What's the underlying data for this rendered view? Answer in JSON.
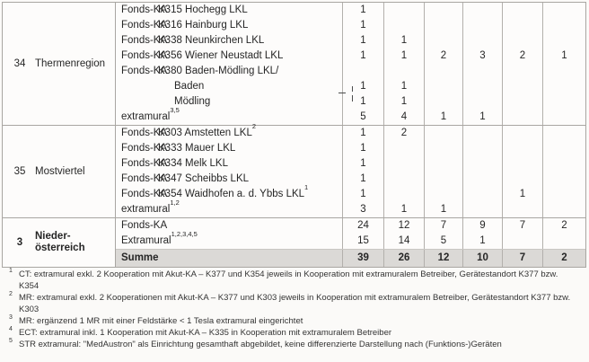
{
  "colors": {
    "table_border": "#a9a6a2",
    "grid_line": "#b3b0ac",
    "total_row_bg": "#dbd9d6",
    "text": "#262626",
    "page_bg": "#fbfaf8"
  },
  "sections": [
    {
      "code": "34",
      "region_line1": "Thermenregion",
      "region_line2": "",
      "rows": [
        {
          "type": "Fonds-KA",
          "name": "K315 Hochegg LKL",
          "sup": "",
          "indent": 1,
          "total": false,
          "values": [
            "1",
            "",
            "",
            "",
            "",
            ""
          ]
        },
        {
          "type": "Fonds-KA",
          "name": "K316 Hainburg LKL",
          "sup": "",
          "indent": 1,
          "total": false,
          "values": [
            "1",
            "",
            "",
            "",
            "",
            ""
          ]
        },
        {
          "type": "Fonds-KA",
          "name": "K338 Neunkirchen LKL",
          "sup": "",
          "indent": 1,
          "total": false,
          "values": [
            "1",
            "1",
            "",
            "",
            "",
            ""
          ]
        },
        {
          "type": "Fonds-KA",
          "name": "K356 Wiener Neustadt LKL",
          "sup": "",
          "indent": 1,
          "total": false,
          "values": [
            "1",
            "1",
            "2",
            "3",
            "2",
            "1"
          ]
        },
        {
          "type": "Fonds-KA",
          "name": "K380 Baden-Mödling LKL/",
          "sup": "",
          "indent": 1,
          "total": false,
          "values": [
            "",
            "",
            "",
            "",
            "",
            ""
          ]
        },
        {
          "type": "",
          "name": "Baden",
          "sup": "",
          "indent": 2,
          "total": false,
          "values": [
            "1",
            "1",
            "",
            "",
            "",
            ""
          ]
        },
        {
          "type": "",
          "name": "Mödling",
          "sup": "",
          "indent": 2,
          "total": false,
          "values": [
            "1",
            "1",
            "",
            "",
            "",
            ""
          ]
        },
        {
          "type": "",
          "name": "extramural",
          "sup": "3,5",
          "indent": 0,
          "total": false,
          "values": [
            "5",
            "4",
            "1",
            "1",
            "",
            ""
          ]
        }
      ]
    },
    {
      "code": "35",
      "region_line1": "Mostviertel",
      "region_line2": "",
      "rows": [
        {
          "type": "Fonds-KA",
          "name": "K303 Amstetten LKL",
          "sup": "2",
          "indent": 1,
          "total": false,
          "values": [
            "1",
            "2",
            "",
            "",
            "",
            ""
          ]
        },
        {
          "type": "Fonds-KA",
          "name": "K333 Mauer LKL",
          "sup": "",
          "indent": 1,
          "total": false,
          "values": [
            "1",
            "",
            "",
            "",
            "",
            ""
          ]
        },
        {
          "type": "Fonds-KA",
          "name": "K334 Melk LKL",
          "sup": "",
          "indent": 1,
          "total": false,
          "values": [
            "1",
            "",
            "",
            "",
            "",
            ""
          ]
        },
        {
          "type": "Fonds-KA",
          "name": "K347 Scheibbs LKL",
          "sup": "",
          "indent": 1,
          "total": false,
          "values": [
            "1",
            "",
            "",
            "",
            "",
            ""
          ]
        },
        {
          "type": "Fonds-KA",
          "name": "K354 Waidhofen a. d. Ybbs LKL",
          "sup": "1",
          "indent": 1,
          "total": false,
          "values": [
            "1",
            "",
            "",
            "",
            "1",
            ""
          ]
        },
        {
          "type": "",
          "name": "extramural",
          "sup": "1,2",
          "indent": 0,
          "total": false,
          "values": [
            "3",
            "1",
            "1",
            "",
            "",
            ""
          ]
        }
      ]
    },
    {
      "code": "3",
      "region_line1": "Nieder-",
      "region_line2": "österreich",
      "rows": [
        {
          "type": "",
          "name": "Fonds-KA",
          "sup": "",
          "indent": 0,
          "total": false,
          "values": [
            "24",
            "12",
            "7",
            "9",
            "7",
            "2"
          ]
        },
        {
          "type": "",
          "name": "Extramural",
          "sup": "1,2,3,4,5",
          "indent": 0,
          "total": false,
          "values": [
            "15",
            "14",
            "5",
            "1",
            "",
            ""
          ]
        },
        {
          "type": "",
          "name": "Summe",
          "sup": "",
          "indent": 0,
          "total": true,
          "values": [
            "39",
            "26",
            "12",
            "10",
            "7",
            "2"
          ]
        }
      ]
    }
  ],
  "footnotes": [
    {
      "marker": "1",
      "text": "CT: extramural exkl. 2 Kooperation mit Akut-KA – K377 und K354 jeweils in Kooperation mit extramuralem Betreiber, Gerätestandort K377 bzw. K354"
    },
    {
      "marker": "2",
      "text": "MR: extramural exkl. 2 Kooperationen mit Akut-KA – K377 und K303 jeweils in Kooperation mit extramuralem Betreiber, Gerätestandort K377 bzw. K303"
    },
    {
      "marker": "3",
      "text": "MR: ergänzend 1 MR mit einer Feldstärke < 1 Tesla extramural eingerichtet"
    },
    {
      "marker": "4",
      "text": "ECT: extramural inkl. 1 Kooperation mit Akut-KA – K335 in Kooperation mit extramuralem Betreiber"
    },
    {
      "marker": "5",
      "text": "STR extramural: \"MedAustron\" als Einrichtung gesamthaft abgebildet, keine differenzierte Darstellung nach (Funktions-)Geräten"
    }
  ]
}
